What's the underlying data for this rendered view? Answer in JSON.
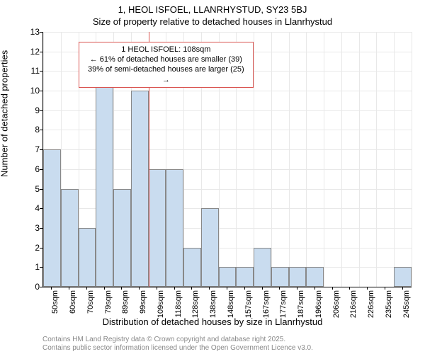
{
  "chart": {
    "type": "histogram",
    "title_line1": "1, HEOL ISFOEL, LLANRHYSTUD, SY23 5BJ",
    "title_line2": "Size of property relative to detached houses in Llanrhystud",
    "y_label": "Number of detached properties",
    "x_label": "Distribution of detached houses by size in Llanrhystud",
    "ylim": [
      0,
      13
    ],
    "ytick_step": 1,
    "x_categories": [
      "50sqm",
      "60sqm",
      "70sqm",
      "79sqm",
      "89sqm",
      "99sqm",
      "109sqm",
      "118sqm",
      "128sqm",
      "138sqm",
      "148sqm",
      "157sqm",
      "167sqm",
      "177sqm",
      "187sqm",
      "196sqm",
      "206sqm",
      "216sqm",
      "226sqm",
      "235sqm",
      "245sqm"
    ],
    "values": [
      7,
      5,
      3,
      11,
      5,
      10,
      6,
      6,
      2,
      4,
      1,
      1,
      2,
      1,
      1,
      1,
      0,
      0,
      0,
      0,
      1
    ],
    "bar_color": "#c9dcef",
    "bar_border": "#888888",
    "background_color": "#ffffff",
    "grid_color": "#e8e8e8",
    "reference_line": {
      "position": 6.0,
      "color": "#d9534f"
    },
    "annotation": {
      "line1": "1 HEOL ISFOEL: 108sqm",
      "line2": "← 61% of detached houses are smaller (39)",
      "line3": "39% of semi-detached houses are larger (25) →",
      "border_color": "#d9534f",
      "left_bin": 2,
      "right_bin": 12,
      "top_value": 12.5,
      "bottom_value": 11.1
    },
    "title_fontsize": 13,
    "label_fontsize": 13,
    "tick_fontsize": 12
  },
  "footer": {
    "line1": "Contains HM Land Registry data © Crown copyright and database right 2025.",
    "line2": "Contains public sector information licensed under the Open Government Licence v3.0.",
    "color": "#888888"
  }
}
